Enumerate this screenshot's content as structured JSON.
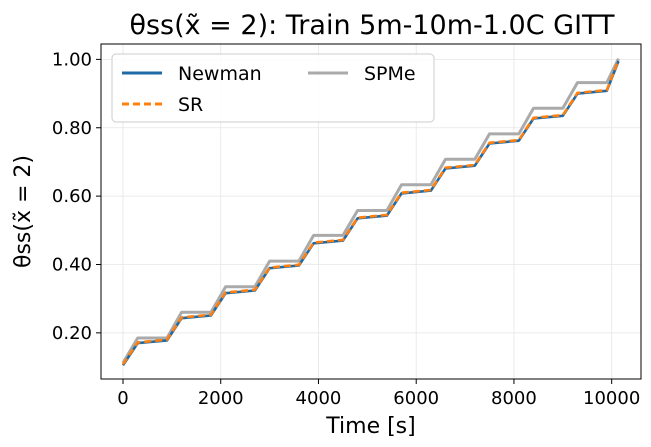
{
  "chart_data": {
    "type": "line",
    "title": "θss(x̃ = 2): Train 5m-10m-1.0C GITT",
    "xlabel": "Time [s]",
    "ylabel": "θss(x̃ = 2)",
    "xlim": [
      -450,
      10600
    ],
    "ylim": [
      0.065,
      1.045
    ],
    "xticks": [
      0,
      2000,
      4000,
      6000,
      8000,
      10000
    ],
    "xtick_labels": [
      "0",
      "2000",
      "4000",
      "6000",
      "8000",
      "10000"
    ],
    "yticks": [
      0.2,
      0.4,
      0.6,
      0.8,
      1.0
    ],
    "ytick_labels": [
      "0.20",
      "0.40",
      "0.60",
      "0.80",
      "1.00"
    ],
    "grid": true,
    "legend_position": "top-left",
    "series": [
      {
        "name": "Newman",
        "color": "#1f6aa5",
        "style": "solid",
        "x": [
          0,
          300,
          900,
          1200,
          1800,
          2100,
          2700,
          3000,
          3600,
          3900,
          4500,
          4800,
          5400,
          5700,
          6300,
          6600,
          7200,
          7500,
          8100,
          8400,
          9000,
          9300,
          9900,
          10140
        ],
        "y": [
          0.105,
          0.17,
          0.178,
          0.243,
          0.251,
          0.316,
          0.324,
          0.389,
          0.397,
          0.462,
          0.47,
          0.535,
          0.543,
          0.608,
          0.616,
          0.681,
          0.689,
          0.754,
          0.762,
          0.827,
          0.835,
          0.9,
          0.908,
          0.995
        ]
      },
      {
        "name": "SR",
        "color": "#ff7f0e",
        "style": "dashed",
        "x": [
          0,
          300,
          900,
          1200,
          1800,
          2100,
          2700,
          3000,
          3600,
          3900,
          4500,
          4800,
          5400,
          5700,
          6300,
          6600,
          7200,
          7500,
          8100,
          8400,
          9000,
          9300,
          9900,
          10140
        ],
        "y": [
          0.108,
          0.172,
          0.18,
          0.245,
          0.253,
          0.318,
          0.326,
          0.391,
          0.399,
          0.464,
          0.472,
          0.537,
          0.545,
          0.61,
          0.618,
          0.683,
          0.691,
          0.756,
          0.764,
          0.829,
          0.837,
          0.902,
          0.91,
          0.998
        ]
      },
      {
        "name": "SPMe",
        "color": "#aaaaaa",
        "style": "solid",
        "x": [
          0,
          300,
          900,
          1200,
          1800,
          2100,
          2700,
          3000,
          3600,
          3900,
          4500,
          4800,
          5400,
          5700,
          6300,
          6600,
          7200,
          7500,
          8100,
          8400,
          9000,
          9300,
          9900,
          10140
        ],
        "y": [
          0.112,
          0.185,
          0.185,
          0.26,
          0.26,
          0.335,
          0.335,
          0.41,
          0.41,
          0.485,
          0.485,
          0.558,
          0.558,
          0.633,
          0.633,
          0.708,
          0.708,
          0.782,
          0.782,
          0.857,
          0.857,
          0.932,
          0.932,
          1.002
        ]
      }
    ]
  }
}
